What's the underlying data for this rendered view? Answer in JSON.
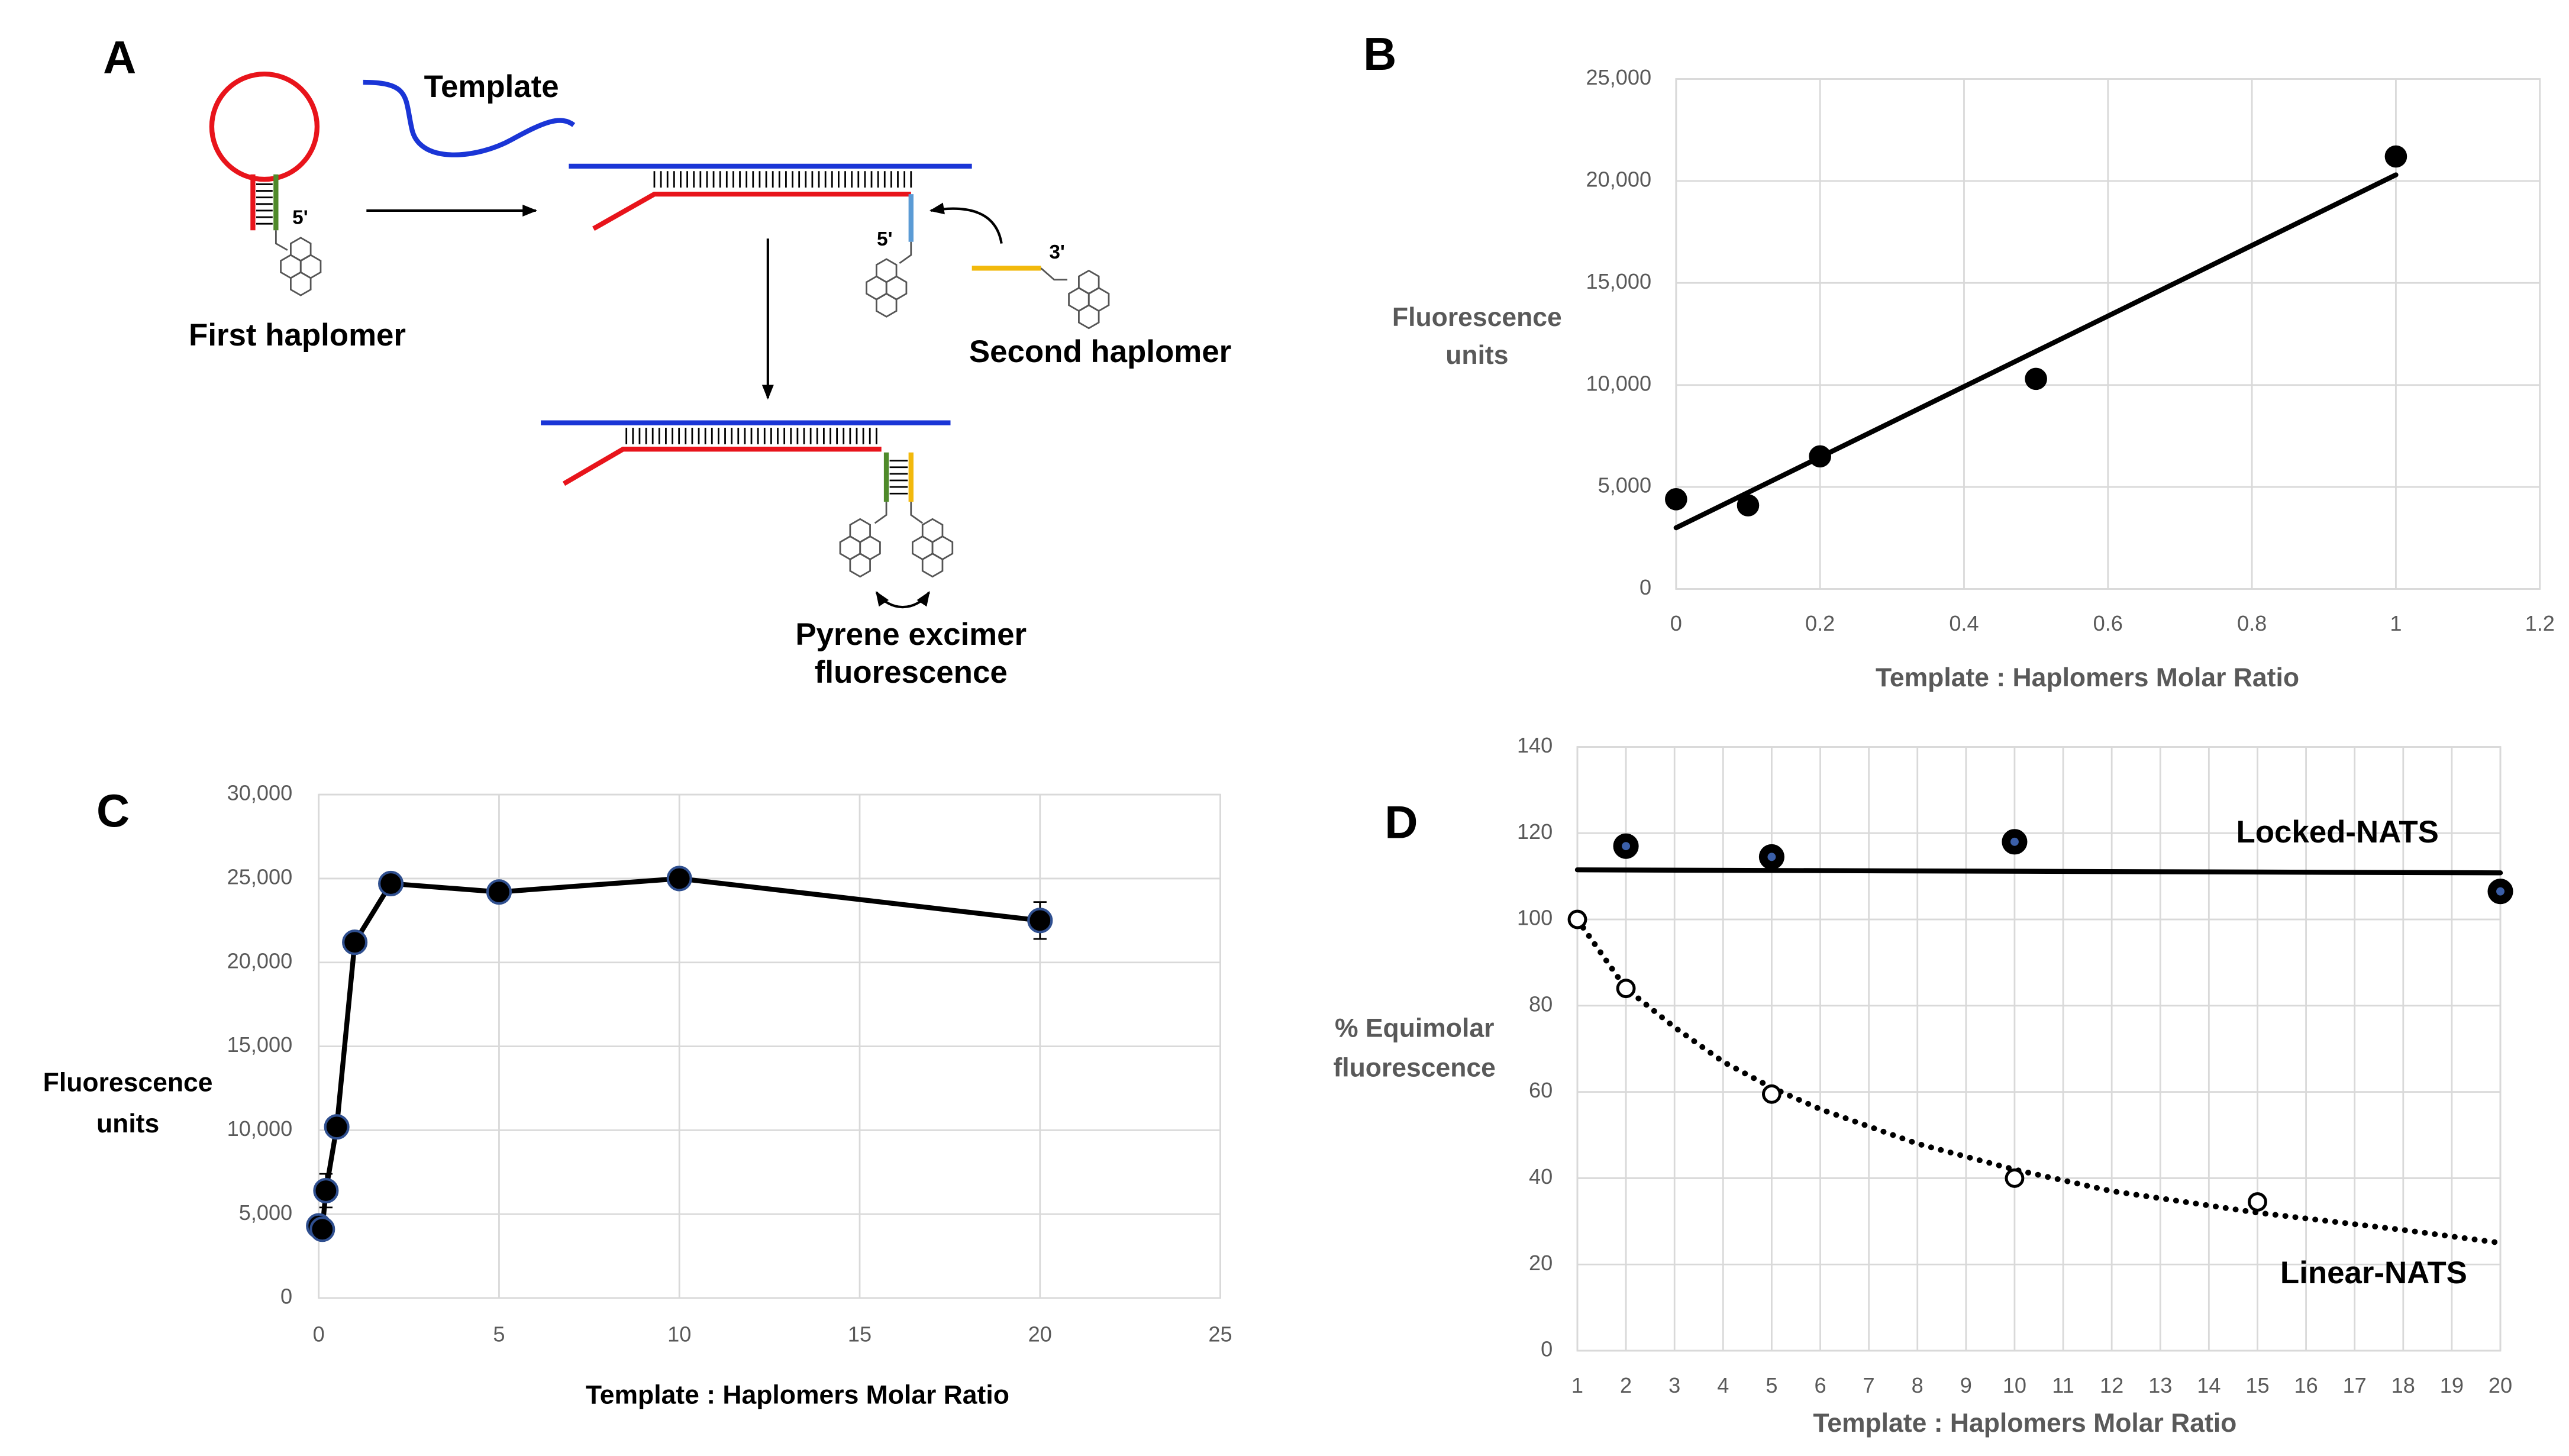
{
  "diagram": {
    "panel": "A",
    "labels": {
      "template": "Template",
      "first_five_prime": "5'",
      "first_haplomer": "First haplomer",
      "second_five_prime": "5'",
      "three_prime": "3'",
      "second_haplomer": "Second haplomer",
      "excimer": [
        "Pyrene excimer",
        "fluorescence"
      ]
    }
  },
  "chart_data": [
    {
      "type": "scatter",
      "panel": "B",
      "xlabel": "Template : Haplomers Molar Ratio",
      "ylabel": [
        "Fluorescence",
        "units"
      ],
      "xlim": [
        0,
        1.2
      ],
      "xticks": [
        0,
        0.2,
        0.4,
        0.6,
        0.8,
        1,
        1.2
      ],
      "ylim": [
        0,
        25000
      ],
      "yticks": [
        0,
        {
          "value": 5000,
          "label": "5,000"
        },
        {
          "value": 10000,
          "label": "10,000"
        },
        {
          "value": 15000,
          "label": "15,000"
        },
        {
          "value": 20000,
          "label": "20,000"
        },
        {
          "value": 25000,
          "label": "25,000"
        }
      ],
      "grid": true,
      "series": [
        {
          "color": "#000000",
          "marker": "filled",
          "x": [
            0,
            0.1,
            0.2,
            0.5,
            1
          ],
          "values": [
            4400,
            4100,
            6500,
            10300,
            21200
          ],
          "trendline": {
            "style": "solid",
            "x": [
              0,
              1
            ],
            "values": [
              3000,
              20300
            ]
          }
        }
      ]
    },
    {
      "type": "line",
      "panel": "C",
      "xlabel": "Template : Haplomers Molar Ratio",
      "ylabel": [
        "Fluorescence",
        "units"
      ],
      "xlim": [
        0,
        25
      ],
      "xticks": [
        0,
        5,
        10,
        15,
        20,
        25
      ],
      "ylim": [
        0,
        30000
      ],
      "yticks": [
        0,
        {
          "value": 5000,
          "label": "5,000"
        },
        {
          "value": 10000,
          "label": "10,000"
        },
        {
          "value": 15000,
          "label": "15,000"
        },
        {
          "value": 20000,
          "label": "20,000"
        },
        {
          "value": 25000,
          "label": "25,000"
        },
        {
          "value": 30000,
          "label": "30,000"
        }
      ],
      "grid": true,
      "series": [
        {
          "color": "#000000",
          "edge": "#2f4f8f",
          "marker": "filled",
          "x": [
            0,
            0.1,
            0.2,
            0.5,
            1,
            2,
            5,
            10,
            20
          ],
          "values": [
            4300,
            4100,
            6400,
            10200,
            21200,
            24700,
            24200,
            25000,
            22500
          ],
          "errors": [
            null,
            null,
            1000,
            null,
            null,
            500,
            null,
            null,
            1100
          ]
        }
      ]
    },
    {
      "type": "scatter",
      "panel": "D",
      "xlabel": "Template : Haplomers Molar Ratio",
      "ylabel": [
        "% Equimolar",
        "fluorescence"
      ],
      "xlim": [
        1,
        20
      ],
      "xticks": [
        1,
        2,
        3,
        4,
        5,
        6,
        7,
        8,
        9,
        10,
        11,
        12,
        13,
        14,
        15,
        16,
        17,
        18,
        19,
        20
      ],
      "ylim": [
        0,
        140
      ],
      "yticks": [
        0,
        20,
        40,
        60,
        80,
        100,
        120,
        140
      ],
      "grid": true,
      "series": [
        {
          "name": "Locked-NATS",
          "color": "#000000",
          "edge": "#000000",
          "center": "#3b5fa8",
          "marker": "filled",
          "x": [
            2,
            5,
            10,
            20
          ],
          "values": [
            117,
            114.5,
            118,
            106.5
          ],
          "trendline": {
            "style": "solid",
            "x": [
              1,
              20
            ],
            "values": [
              111.5,
              110.8
            ]
          }
        },
        {
          "name": "Linear-NATS",
          "color": "#000000",
          "marker": "open",
          "x": [
            1,
            2,
            5,
            10,
            15
          ],
          "values": [
            100,
            84,
            59.5,
            40,
            34.5
          ],
          "trendline": {
            "style": "dotted",
            "x": [
              1,
              2,
              3,
              4,
              5,
              6,
              8,
              10,
              12,
              15,
              18,
              20
            ],
            "values": [
              100,
              84,
              75,
              67,
              61,
              56,
              48,
              42,
              37,
              32,
              28,
              25
            ]
          }
        }
      ]
    }
  ]
}
